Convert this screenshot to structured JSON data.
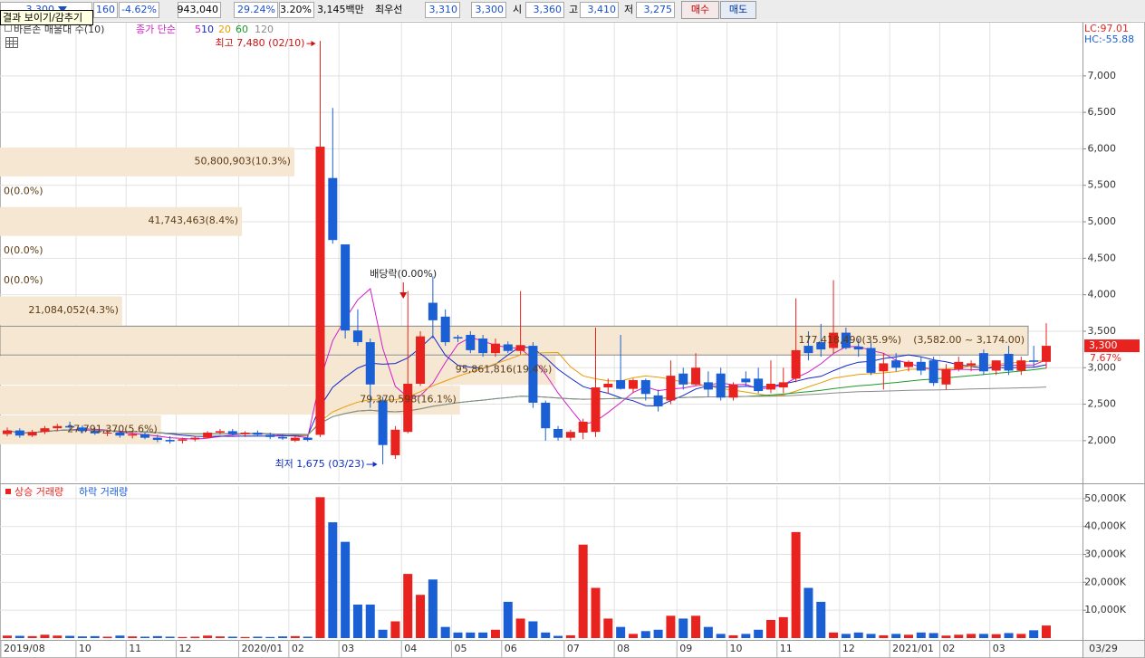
{
  "header": {
    "price": "3,300",
    "change": "160",
    "change_rate": "-4.62%",
    "volume": "943,040",
    "turnover_rate": "29.24%",
    "ratio": "3.20%",
    "amount": "3,145백만",
    "best_label": "최우선",
    "best_ask": "3,310",
    "best_bid": "3,300",
    "open_label": "시",
    "open": "3,360",
    "high_label": "고",
    "high": "3,410",
    "low_label": "저",
    "low": "3,275",
    "buy": "매수",
    "sell": "매도"
  },
  "tooltip": "결과 보이기/감추기",
  "chart_data": [
    {
      "type": "candlestick",
      "indicator_label": "바른손 매물대 수(10)",
      "ma": {
        "label": "종가 단순",
        "periods": [
          5,
          10,
          20,
          60,
          120
        ],
        "colors": [
          "#d41cc8",
          "#1428c8",
          "#e89c00",
          "#1e9a28",
          "#8a8a8a"
        ]
      },
      "up_color": "#e8231f",
      "down_color": "#1a5fd4",
      "open": [
        2090,
        2140,
        2070,
        2120,
        2170,
        2200,
        2180,
        2130,
        2100,
        2110,
        2070,
        2090,
        2040,
        2010,
        2000,
        2020,
        2040,
        2110,
        2130,
        2090,
        2110,
        2080,
        2050,
        2000,
        2040,
        2080,
        5600,
        4690,
        3510,
        3350,
        2550,
        1800,
        2120,
        2780,
        3890,
        3700,
        3420,
        3450,
        3400,
        3200,
        3320,
        3230,
        3300,
        2520,
        2160,
        2040,
        2110,
        2120,
        2730,
        2830,
        2710,
        2830,
        2620,
        2550,
        2920,
        2770,
        2800,
        2920,
        2590,
        2850,
        2850,
        2700,
        2730,
        2850,
        3300,
        3350,
        3270,
        3480,
        3290,
        3270,
        2950,
        3100,
        3010,
        3080,
        3100,
        2770,
        2980,
        3030,
        3200,
        2960,
        3190,
        2960,
        3100,
        3080
      ],
      "high": [
        2180,
        2170,
        2150,
        2200,
        2230,
        2260,
        2210,
        2180,
        2150,
        2140,
        2120,
        2110,
        2080,
        2060,
        2040,
        2060,
        2130,
        2160,
        2160,
        2130,
        2140,
        2110,
        2090,
        2060,
        2080,
        7480,
        6560,
        4690,
        3800,
        3400,
        2600,
        2200,
        4050,
        3500,
        4250,
        3800,
        3450,
        3500,
        3450,
        3400,
        3360,
        4050,
        3350,
        2550,
        2200,
        2150,
        2300,
        3550,
        2850,
        3450,
        2850,
        2850,
        2700,
        3100,
        3000,
        3200,
        2950,
        3000,
        2800,
        2950,
        3000,
        3100,
        3000,
        3950,
        3500,
        3600,
        4200,
        3550,
        3400,
        3350,
        3200,
        3200,
        3100,
        3150,
        3150,
        3050,
        3150,
        3100,
        3250,
        3100,
        3300,
        3150,
        3300,
        3610
      ],
      "low": [
        2060,
        2040,
        2050,
        2090,
        2130,
        2150,
        2100,
        2080,
        2060,
        2040,
        2030,
        2020,
        1980,
        1960,
        1960,
        1990,
        2030,
        2080,
        2070,
        2050,
        2060,
        2020,
        2010,
        1980,
        1990,
        2050,
        4700,
        3400,
        3300,
        2450,
        1675,
        1750,
        2100,
        2750,
        3400,
        3300,
        3350,
        3200,
        3150,
        3150,
        3200,
        3180,
        2450,
        2000,
        2000,
        2000,
        2020,
        2050,
        2650,
        2700,
        2650,
        2550,
        2400,
        2500,
        2700,
        2750,
        2600,
        2550,
        2550,
        2750,
        2650,
        2650,
        2650,
        2800,
        3100,
        3150,
        3200,
        3250,
        3150,
        2900,
        2700,
        2950,
        2950,
        2900,
        2750,
        2700,
        2950,
        2950,
        2900,
        2900,
        2900,
        2900,
        3000,
        2990
      ],
      "close": [
        2140,
        2070,
        2120,
        2170,
        2200,
        2180,
        2130,
        2100,
        2110,
        2070,
        2090,
        2040,
        2010,
        1990,
        2020,
        2040,
        2110,
        2130,
        2090,
        2110,
        2080,
        2050,
        2030,
        2040,
        2010,
        6030,
        4750,
        3510,
        3350,
        2770,
        1940,
        2150,
        2780,
        3430,
        3650,
        3350,
        3400,
        3240,
        3200,
        3330,
        3230,
        3310,
        2520,
        2170,
        2040,
        2120,
        2260,
        2730,
        2780,
        2710,
        2830,
        2640,
        2470,
        2890,
        2770,
        3000,
        2700,
        2590,
        2770,
        2800,
        2680,
        2780,
        2800,
        3240,
        3200,
        3250,
        3480,
        3270,
        3250,
        2930,
        3060,
        3000,
        3080,
        2960,
        2790,
        2980,
        3080,
        3060,
        2950,
        3100,
        2960,
        3100,
        3080,
        3300
      ],
      "ylim": [
        1440,
        7730
      ],
      "yticks": [
        {
          "value": 2000,
          "label": "2,000"
        },
        {
          "value": 2500,
          "label": "2,500"
        },
        {
          "value": 3000,
          "label": "3,000"
        },
        {
          "value": 3500,
          "label": "3,500"
        },
        {
          "value": 4000,
          "label": "4,000"
        },
        {
          "value": 4500,
          "label": "4,500"
        },
        {
          "value": 5000,
          "label": "5,000"
        },
        {
          "value": 5500,
          "label": "5,500"
        },
        {
          "value": 6000,
          "label": "6,000"
        },
        {
          "value": 6500,
          "label": "6,500"
        },
        {
          "value": 7000,
          "label": "7,000"
        }
      ],
      "grid": true,
      "volume_profile": {
        "color": "#f6e7d2",
        "label_color": "#5c3b12",
        "highlight": 3,
        "bins": [
          1950,
          2358,
          2766,
          3174,
          3582,
          3990,
          4398,
          4806,
          5214,
          5622,
          6030
        ],
        "values": [
          27791370,
          79370598,
          95861816,
          177418490,
          21084052,
          0,
          0,
          41743463,
          0,
          50800903
        ],
        "value_labels": [
          "27,791,370(5.6%)",
          "79,370,598(16.1%)",
          "95,861,816(19.4%)",
          "177,418,490(35.9%)",
          "21,084,052(4.3%)",
          "0(0.0%)",
          "0(0.0%)",
          "41,743,463(8.4%)",
          "0(0.0%)",
          "50,800,903(10.3%)"
        ],
        "range_label": "(3,582.00 ~ 3,174.00)"
      },
      "high_label": "최고 7,480 (02/10)",
      "low_label": "최저 1,675 (03/23)",
      "dividend_label": "배당락(0.00%)",
      "last_price_label": "3,300",
      "change_label": "7.67%",
      "lc_label": "LC:97.01",
      "hc_label": "HC:-55.88"
    },
    {
      "type": "bar",
      "series_names": [
        "상승 거래량",
        "하락 거래량"
      ],
      "values": [
        900,
        800,
        700,
        1200,
        900,
        800,
        600,
        700,
        500,
        900,
        600,
        500,
        700,
        500,
        400,
        500,
        900,
        600,
        500,
        400,
        500,
        400,
        600,
        700,
        500,
        50500,
        41500,
        34500,
        12000,
        12000,
        3000,
        6000,
        23000,
        15500,
        21000,
        4000,
        2000,
        2000,
        2000,
        3000,
        13000,
        7000,
        6000,
        2000,
        800,
        1000,
        33500,
        18000,
        7000,
        4000,
        1500,
        2500,
        3000,
        8000,
        7000,
        8000,
        4000,
        1500,
        1000,
        1500,
        3000,
        6500,
        7500,
        38000,
        18000,
        13000,
        2000,
        1500,
        2000,
        1500,
        1000,
        1500,
        1200,
        2000,
        1800,
        900,
        1200,
        1500,
        1500,
        1400,
        1800,
        1500,
        2800,
        4500
      ],
      "categories": [
        "2019/08",
        null,
        null,
        null,
        null,
        null,
        "10",
        null,
        null,
        null,
        "11",
        null,
        null,
        null,
        "12",
        null,
        null,
        null,
        null,
        "2020/01",
        null,
        null,
        null,
        "02",
        null,
        null,
        null,
        "03",
        null,
        null,
        null,
        null,
        "04",
        null,
        null,
        null,
        "05",
        null,
        null,
        null,
        "06",
        null,
        null,
        null,
        null,
        "07",
        null,
        null,
        null,
        "08",
        null,
        null,
        null,
        null,
        "09",
        null,
        null,
        null,
        "10",
        null,
        null,
        null,
        "11",
        null,
        null,
        null,
        null,
        "12",
        null,
        null,
        null,
        "2021/01",
        null,
        null,
        null,
        "02",
        null,
        null,
        null,
        "03",
        null,
        null,
        null,
        null
      ],
      "ylim": [
        0,
        54500
      ],
      "yticks": [
        {
          "value": 10000,
          "label": "10,000K"
        },
        {
          "value": 20000,
          "label": "20,000K"
        },
        {
          "value": 30000,
          "label": "30,000K"
        },
        {
          "value": 40000,
          "label": "40,000K"
        },
        {
          "value": 50000,
          "label": "50,000K"
        }
      ],
      "grid": true,
      "cursor_label": "03/29"
    }
  ]
}
